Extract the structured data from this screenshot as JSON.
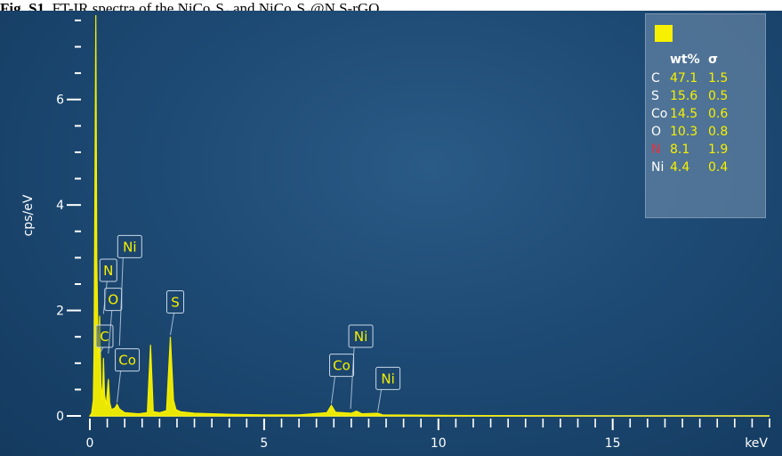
{
  "caption": {
    "label": "Fig. S1.",
    "text": "FT-IR spectra of the NiCo₂S₄ and NiCo₂S₄@N,S-rGO"
  },
  "colors": {
    "background": "#1d4a74",
    "spectrum": "#f7f000",
    "axis": "#ffffff",
    "label_box_border": "#c8d8e8",
    "highlight_element": "#e8303a"
  },
  "chart_data": {
    "type": "line",
    "title": "",
    "xlabel": "keV",
    "ylabel": "cps/eV",
    "xlim": [
      0,
      19.5
    ],
    "ylim": [
      0,
      7.6
    ],
    "x_ticks": [
      0,
      5,
      10,
      15
    ],
    "y_ticks": [
      0,
      2,
      4,
      6
    ],
    "grid": false,
    "series": [
      {
        "values": [
          [
            0.0,
            0.0
          ],
          [
            0.05,
            0.05
          ],
          [
            0.1,
            0.3
          ],
          [
            0.12,
            1.2
          ],
          [
            0.15,
            4.9
          ],
          [
            0.17,
            7.6
          ],
          [
            0.2,
            3.0
          ],
          [
            0.24,
            1.1
          ],
          [
            0.28,
            1.9
          ],
          [
            0.32,
            0.6
          ],
          [
            0.36,
            0.3
          ],
          [
            0.39,
            1.1
          ],
          [
            0.42,
            0.4
          ],
          [
            0.47,
            0.2
          ],
          [
            0.53,
            0.7
          ],
          [
            0.57,
            0.25
          ],
          [
            0.62,
            0.12
          ],
          [
            0.72,
            0.15
          ],
          [
            0.78,
            0.22
          ],
          [
            0.85,
            0.13
          ],
          [
            1.0,
            0.06
          ],
          [
            1.4,
            0.04
          ],
          [
            1.65,
            0.06
          ],
          [
            1.74,
            1.35
          ],
          [
            1.82,
            0.08
          ],
          [
            2.0,
            0.06
          ],
          [
            2.2,
            0.1
          ],
          [
            2.31,
            1.5
          ],
          [
            2.4,
            0.3
          ],
          [
            2.47,
            0.12
          ],
          [
            2.6,
            0.08
          ],
          [
            3.0,
            0.05
          ],
          [
            4.0,
            0.03
          ],
          [
            5.0,
            0.02
          ],
          [
            6.0,
            0.02
          ],
          [
            6.8,
            0.06
          ],
          [
            6.93,
            0.2
          ],
          [
            7.05,
            0.07
          ],
          [
            7.5,
            0.05
          ],
          [
            7.65,
            0.09
          ],
          [
            7.8,
            0.04
          ],
          [
            8.26,
            0.05
          ],
          [
            8.4,
            0.02
          ],
          [
            10.0,
            0.01
          ],
          [
            15.0,
            0.0
          ],
          [
            19.5,
            0.0
          ]
        ]
      }
    ],
    "peak_labels": [
      {
        "text": "C",
        "x": 0.28,
        "y": 1.15,
        "box_y": 1.3
      },
      {
        "text": "N",
        "x": 0.39,
        "y": 1.9,
        "box_y": 2.55
      },
      {
        "text": "O",
        "x": 0.53,
        "y": 1.15,
        "box_y": 2.0
      },
      {
        "text": "Ni",
        "x": 0.85,
        "y": 1.3,
        "box_y": 3.0
      },
      {
        "text": "Co",
        "x": 0.78,
        "y": 0.22,
        "box_y": 0.85
      },
      {
        "text": "S",
        "x": 2.31,
        "y": 1.5,
        "box_y": 1.95
      },
      {
        "text": "Co",
        "x": 6.93,
        "y": 0.2,
        "box_y": 0.75
      },
      {
        "text": "Ni",
        "x": 7.48,
        "y": 0.1,
        "box_y": 1.3
      },
      {
        "text": "Ni",
        "x": 8.26,
        "y": 0.05,
        "box_y": 0.5
      }
    ]
  },
  "legend_table": {
    "headers": {
      "wt": "wt%",
      "sigma": "σ"
    },
    "rows": [
      {
        "element": "C",
        "wt": "47.1",
        "sigma": "1.5"
      },
      {
        "element": "S",
        "wt": "15.6",
        "sigma": "0.5"
      },
      {
        "element": "Co",
        "wt": "14.5",
        "sigma": "0.6"
      },
      {
        "element": "O",
        "wt": "10.3",
        "sigma": "0.8"
      },
      {
        "element": "N",
        "wt": "8.1",
        "sigma": "1.9",
        "highlight": true
      },
      {
        "element": "Ni",
        "wt": "4.4",
        "sigma": "0.4"
      }
    ]
  }
}
